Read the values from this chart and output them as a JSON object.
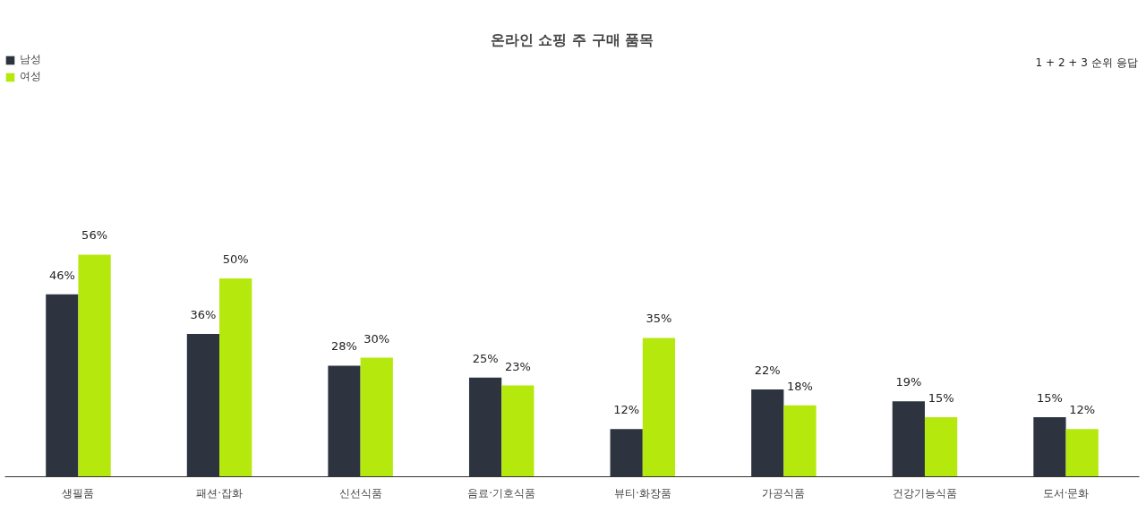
{
  "chart_data": {
    "type": "bar",
    "title": "온라인 쇼핑 주 구매 품목",
    "annotations": [
      "1 + 2 + 3 순위 응답"
    ],
    "categories": [
      "생필품",
      "패션·잡화",
      "신선식품",
      "음료·기호식품",
      "뷰티·화장품",
      "가공식품",
      "건강기능식품",
      "도서·문화"
    ],
    "series": [
      {
        "name": "남성",
        "color": "#2d3440",
        "values": [
          46,
          36,
          28,
          25,
          12,
          22,
          19,
          15
        ],
        "value_labels": [
          "46%",
          "36%",
          "28%",
          "25%",
          "12%",
          "22%",
          "19%",
          "15%"
        ]
      },
      {
        "name": "여성",
        "color": "#b5e80c",
        "values": [
          56,
          50,
          30,
          23,
          35,
          18,
          15,
          12
        ],
        "value_labels": [
          "56%",
          "50%",
          "30%",
          "23%",
          "35%",
          "18%",
          "15%",
          "12%"
        ]
      }
    ],
    "ylim": [
      0,
      107
    ],
    "tick_labels": "x",
    "grid": false,
    "legend": "top left"
  }
}
